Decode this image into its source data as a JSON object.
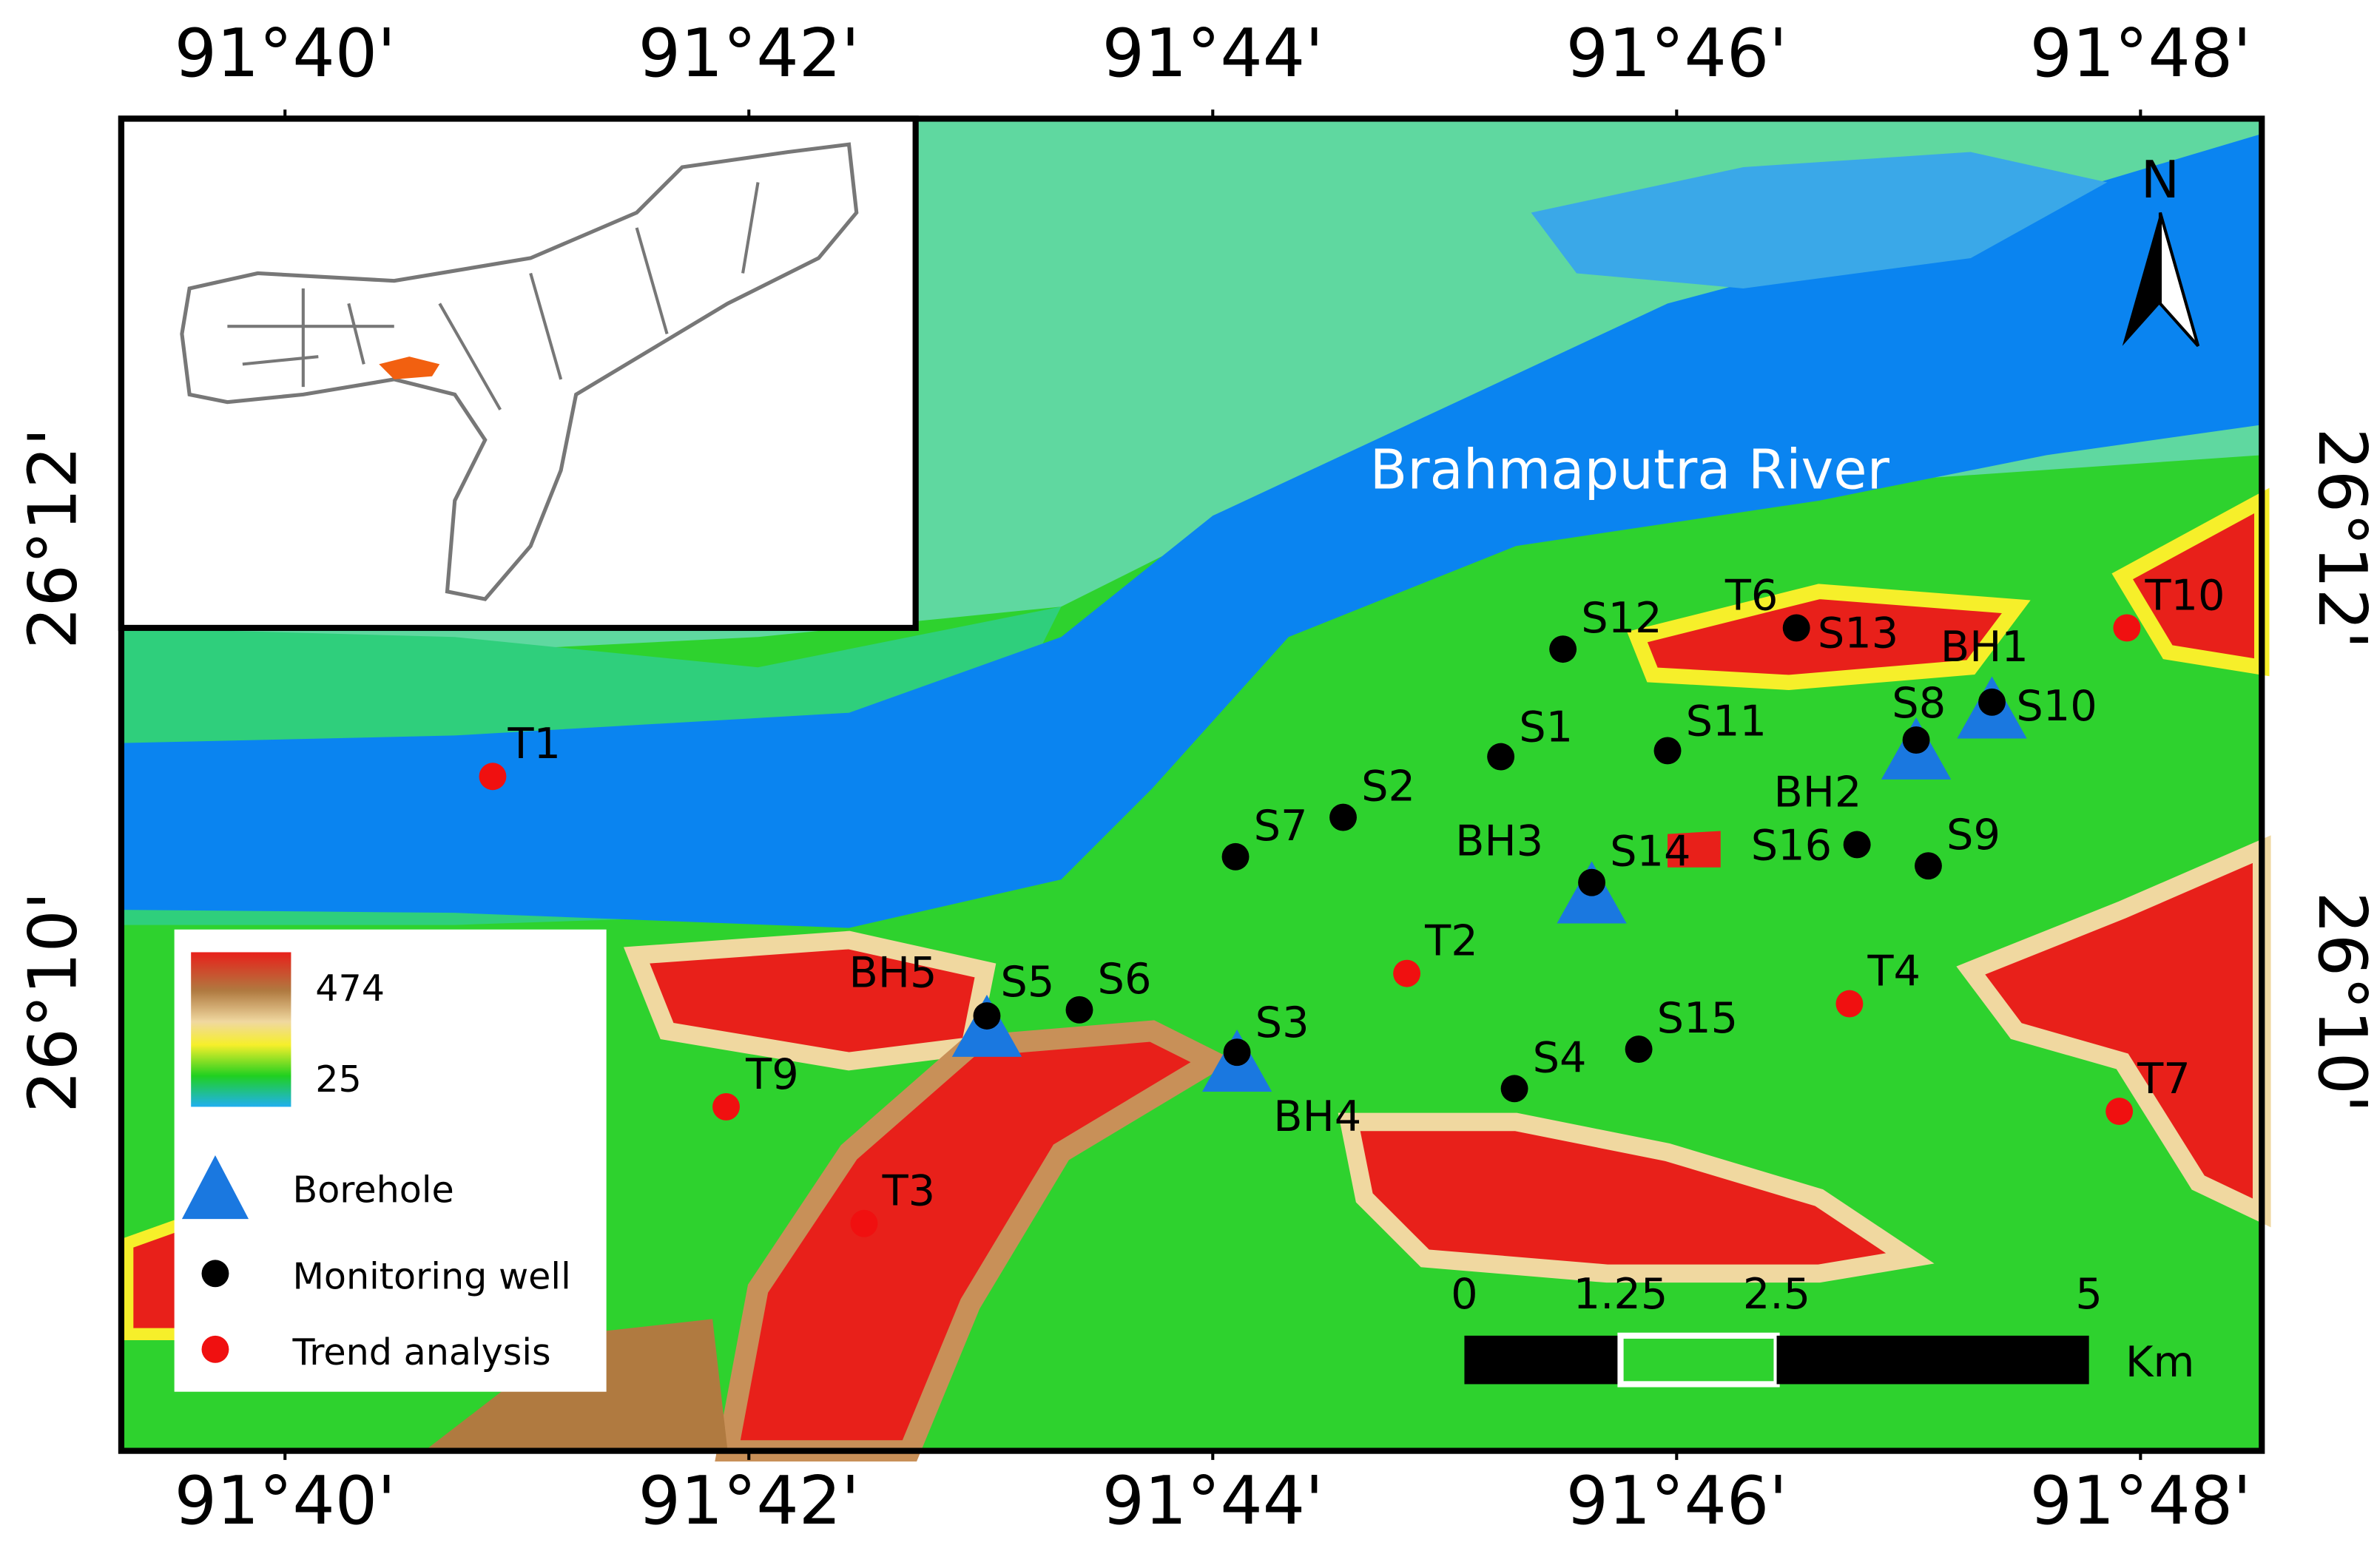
{
  "map": {
    "longitude_labels": [
      "91°40'",
      "91°42'",
      "91°44'",
      "91°46'",
      "91°48'"
    ],
    "latitude_labels": [
      "26°12'",
      "26°10'"
    ],
    "river_label": "Brahmaputra River",
    "north_label": "N",
    "boreholes": [
      "BH1",
      "BH2",
      "BH3",
      "BH4",
      "BH5"
    ],
    "monitoring_wells": [
      "S1",
      "S2",
      "S3",
      "S4",
      "S5",
      "S6",
      "S7",
      "S8",
      "S9",
      "S10",
      "S11",
      "S12",
      "S13",
      "S14",
      "S15",
      "S16"
    ],
    "trend_analysis": [
      "T1",
      "T2",
      "T3",
      "T4",
      "T6",
      "T7",
      "T9",
      "T10"
    ],
    "legend": {
      "elevation_max": 474,
      "elevation_min": 25,
      "items": [
        "Borehole",
        "Monitoring well",
        "Trend analysis"
      ]
    },
    "scale_bar": {
      "ticks": [
        0,
        1.25,
        2.5,
        5
      ],
      "unit": "Km"
    }
  }
}
